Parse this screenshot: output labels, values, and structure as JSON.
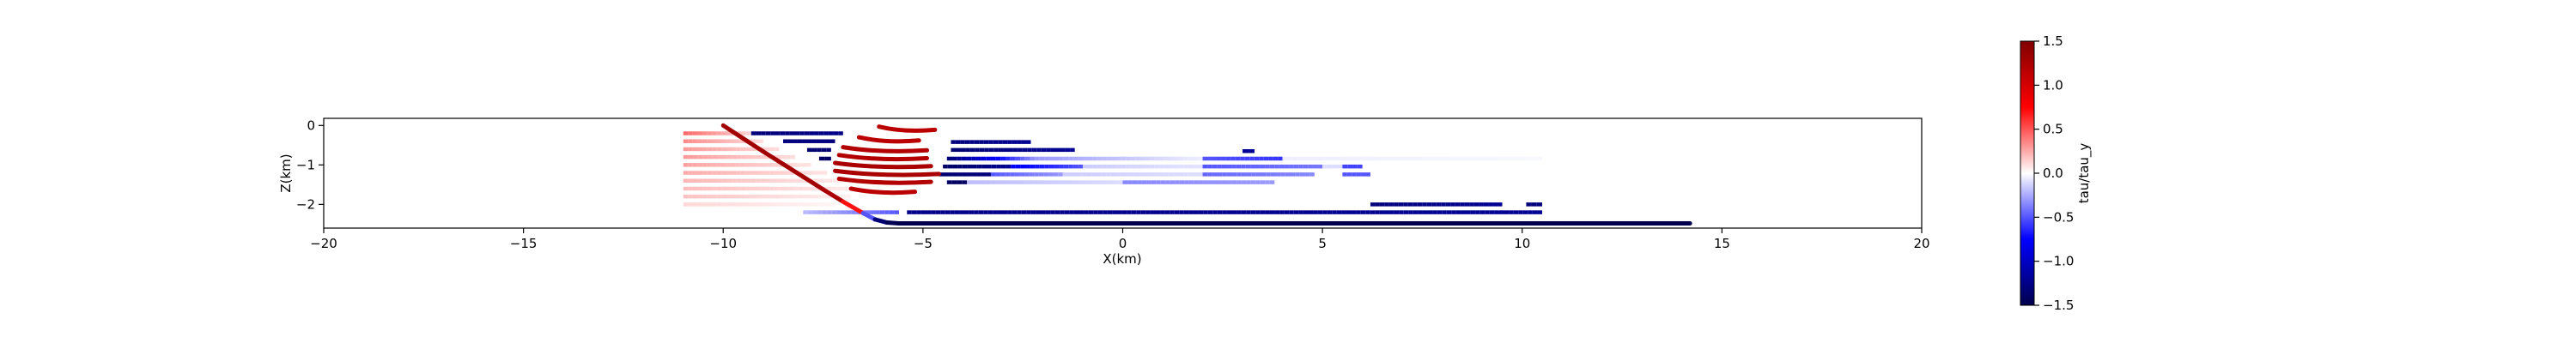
{
  "chart_data": {
    "type": "scatter",
    "xlabel": "X(km)",
    "ylabel": "Z(km)",
    "xlim": [
      -20,
      20
    ],
    "ylim": [
      -2.6,
      0.18
    ],
    "x_ticks": [
      -20,
      -15,
      -10,
      -5,
      0,
      5,
      10,
      15,
      20
    ],
    "x_tick_labels": [
      "−20",
      "−15",
      "−10",
      "−5",
      "0",
      "5",
      "10",
      "15",
      "20"
    ],
    "y_ticks": [
      -2,
      -1,
      0
    ],
    "y_tick_labels": [
      "−2",
      "−1",
      "0"
    ],
    "grid": false,
    "colorbar": {
      "label": "tau/tau_y",
      "colormap": "seismic",
      "range": [
        -1.5,
        1.5
      ],
      "ticks": [
        1.5,
        1.0,
        0.5,
        0.0,
        -0.5,
        -1.0,
        -1.5
      ],
      "tick_labels": [
        "1.5",
        "1.0",
        "0.5",
        "0.0",
        "−0.5",
        "−1.0",
        "−1.5"
      ],
      "placement": "right"
    },
    "fault_trace": {
      "points": [
        [
          -10,
          0
        ],
        [
          -9.5,
          -0.33
        ],
        [
          -9,
          -0.66
        ],
        [
          -8.5,
          -0.98
        ],
        [
          -8,
          -1.3
        ],
        [
          -7.5,
          -1.62
        ],
        [
          -7,
          -1.93
        ],
        [
          -6.5,
          -2.22
        ],
        [
          -6.2,
          -2.38
        ],
        [
          -5.9,
          -2.46
        ],
        [
          -5.6,
          -2.48
        ],
        [
          14.2,
          -2.48
        ]
      ],
      "value_ramp": [
        1.3,
        1.3,
        1.3,
        1.3,
        1.3,
        1.3,
        1.2,
        0.2,
        -1.2,
        -1.45,
        -1.5,
        -1.5
      ]
    },
    "segments": [
      {
        "x0": -11.0,
        "x1": -9.2,
        "z": -0.2,
        "v0": 0.45,
        "v1": 0.1
      },
      {
        "x0": -11.0,
        "x1": -9.0,
        "z": -0.4,
        "v0": 0.35,
        "v1": 0.1
      },
      {
        "x0": -11.0,
        "x1": -8.6,
        "z": -0.6,
        "v0": 0.3,
        "v1": 0.1
      },
      {
        "x0": -11.0,
        "x1": -8.2,
        "z": -0.8,
        "v0": 0.3,
        "v1": 0.1
      },
      {
        "x0": -11.0,
        "x1": -7.8,
        "z": -1.0,
        "v0": 0.28,
        "v1": 0.08
      },
      {
        "x0": -11.0,
        "x1": -7.4,
        "z": -1.2,
        "v0": 0.25,
        "v1": 0.08
      },
      {
        "x0": -11.0,
        "x1": -7.0,
        "z": -1.4,
        "v0": 0.22,
        "v1": 0.06
      },
      {
        "x0": -11.0,
        "x1": -6.8,
        "z": -1.6,
        "v0": 0.2,
        "v1": 0.06
      },
      {
        "x0": -11.0,
        "x1": -6.8,
        "z": -1.8,
        "v0": 0.18,
        "v1": 0.04
      },
      {
        "x0": -11.0,
        "x1": -7.2,
        "z": -2.0,
        "v0": 0.12,
        "v1": 0.03
      },
      {
        "x0": -9.3,
        "x1": -7.0,
        "z": -0.2,
        "v0": -1.3,
        "v1": -1.25
      },
      {
        "x0": -8.5,
        "x1": -7.2,
        "z": -0.4,
        "v0": -1.3,
        "v1": -1.3
      },
      {
        "x0": -7.9,
        "x1": -7.3,
        "z": -0.62,
        "v0": -1.35,
        "v1": -1.35
      },
      {
        "x0": -7.6,
        "x1": -7.3,
        "z": -0.84,
        "v0": -1.4,
        "v1": -1.4
      },
      {
        "x0": -4.3,
        "x1": -2.3,
        "z": -0.42,
        "v0": -1.3,
        "v1": -1.2
      },
      {
        "x0": -4.3,
        "x1": -1.2,
        "z": -0.62,
        "v0": -1.35,
        "v1": -1.2
      },
      {
        "x0": -4.4,
        "x1": -2.2,
        "z": -0.84,
        "v0": -1.35,
        "v1": -0.3
      },
      {
        "x0": -2.2,
        "x1": 2.0,
        "z": -0.84,
        "v0": -0.3,
        "v1": -0.05
      },
      {
        "x0": 2.0,
        "x1": 4.0,
        "z": -0.84,
        "v0": -0.5,
        "v1": -0.6
      },
      {
        "x0": 4.0,
        "x1": 10.5,
        "z": -0.84,
        "v0": -0.05,
        "v1": -0.02
      },
      {
        "x0": 3.0,
        "x1": 3.3,
        "z": -0.65,
        "v0": -1.2,
        "v1": -1.2
      },
      {
        "x0": -4.5,
        "x1": -2.8,
        "z": -1.04,
        "v0": -1.4,
        "v1": -1.2
      },
      {
        "x0": -2.8,
        "x1": -1.0,
        "z": -1.04,
        "v0": -0.8,
        "v1": -0.5
      },
      {
        "x0": -1.0,
        "x1": 2.0,
        "z": -1.04,
        "v0": -0.15,
        "v1": -0.08
      },
      {
        "x0": 2.0,
        "x1": 5.0,
        "z": -1.04,
        "v0": -0.5,
        "v1": -0.4
      },
      {
        "x0": 5.0,
        "x1": 5.5,
        "z": -1.04,
        "v0": -0.1,
        "v1": -0.1
      },
      {
        "x0": 5.5,
        "x1": 6.0,
        "z": -1.04,
        "v0": -0.55,
        "v1": -0.55
      },
      {
        "x0": -4.6,
        "x1": -3.3,
        "z": -1.24,
        "v0": -1.35,
        "v1": -1.3
      },
      {
        "x0": -3.3,
        "x1": -1.5,
        "z": -1.24,
        "v0": -0.5,
        "v1": -0.3
      },
      {
        "x0": -1.5,
        "x1": 2.0,
        "z": -1.24,
        "v0": -0.15,
        "v1": -0.1
      },
      {
        "x0": 2.0,
        "x1": 4.8,
        "z": -1.24,
        "v0": -0.45,
        "v1": -0.35
      },
      {
        "x0": 5.5,
        "x1": 6.2,
        "z": -1.24,
        "v0": -0.5,
        "v1": -0.5
      },
      {
        "x0": -4.4,
        "x1": -3.9,
        "z": -1.44,
        "v0": -1.4,
        "v1": -1.4
      },
      {
        "x0": -3.9,
        "x1": 0.0,
        "z": -1.44,
        "v0": -0.2,
        "v1": -0.1
      },
      {
        "x0": 0.0,
        "x1": 3.8,
        "z": -1.44,
        "v0": -0.35,
        "v1": -0.3
      },
      {
        "x0": 6.2,
        "x1": 9.5,
        "z": -2.0,
        "v0": -1.3,
        "v1": -1.2
      },
      {
        "x0": 10.1,
        "x1": 10.5,
        "z": -2.0,
        "v0": -1.3,
        "v1": -1.3
      },
      {
        "x0": -8.0,
        "x1": -5.6,
        "z": -2.2,
        "v0": -0.2,
        "v1": -0.5
      },
      {
        "x0": -5.4,
        "x1": 10.5,
        "z": -2.2,
        "v0": -1.25,
        "v1": -1.2
      }
    ],
    "red_curves": [
      {
        "x0": -6.1,
        "x1": -4.7,
        "z": -0.03,
        "v": 1.15
      },
      {
        "x0": -6.6,
        "x1": -5.1,
        "z": -0.3,
        "v": 1.15
      },
      {
        "x0": -7.0,
        "x1": -4.9,
        "z": -0.55,
        "v": 1.2
      },
      {
        "x0": -7.1,
        "x1": -4.9,
        "z": -0.75,
        "v": 1.2
      },
      {
        "x0": -7.2,
        "x1": -4.8,
        "z": -0.95,
        "v": 1.25
      },
      {
        "x0": -7.2,
        "x1": -4.6,
        "z": -1.15,
        "v": 1.25
      },
      {
        "x0": -7.1,
        "x1": -4.8,
        "z": -1.35,
        "v": 1.2
      },
      {
        "x0": -6.8,
        "x1": -5.2,
        "z": -1.6,
        "v": 1.15
      }
    ]
  }
}
